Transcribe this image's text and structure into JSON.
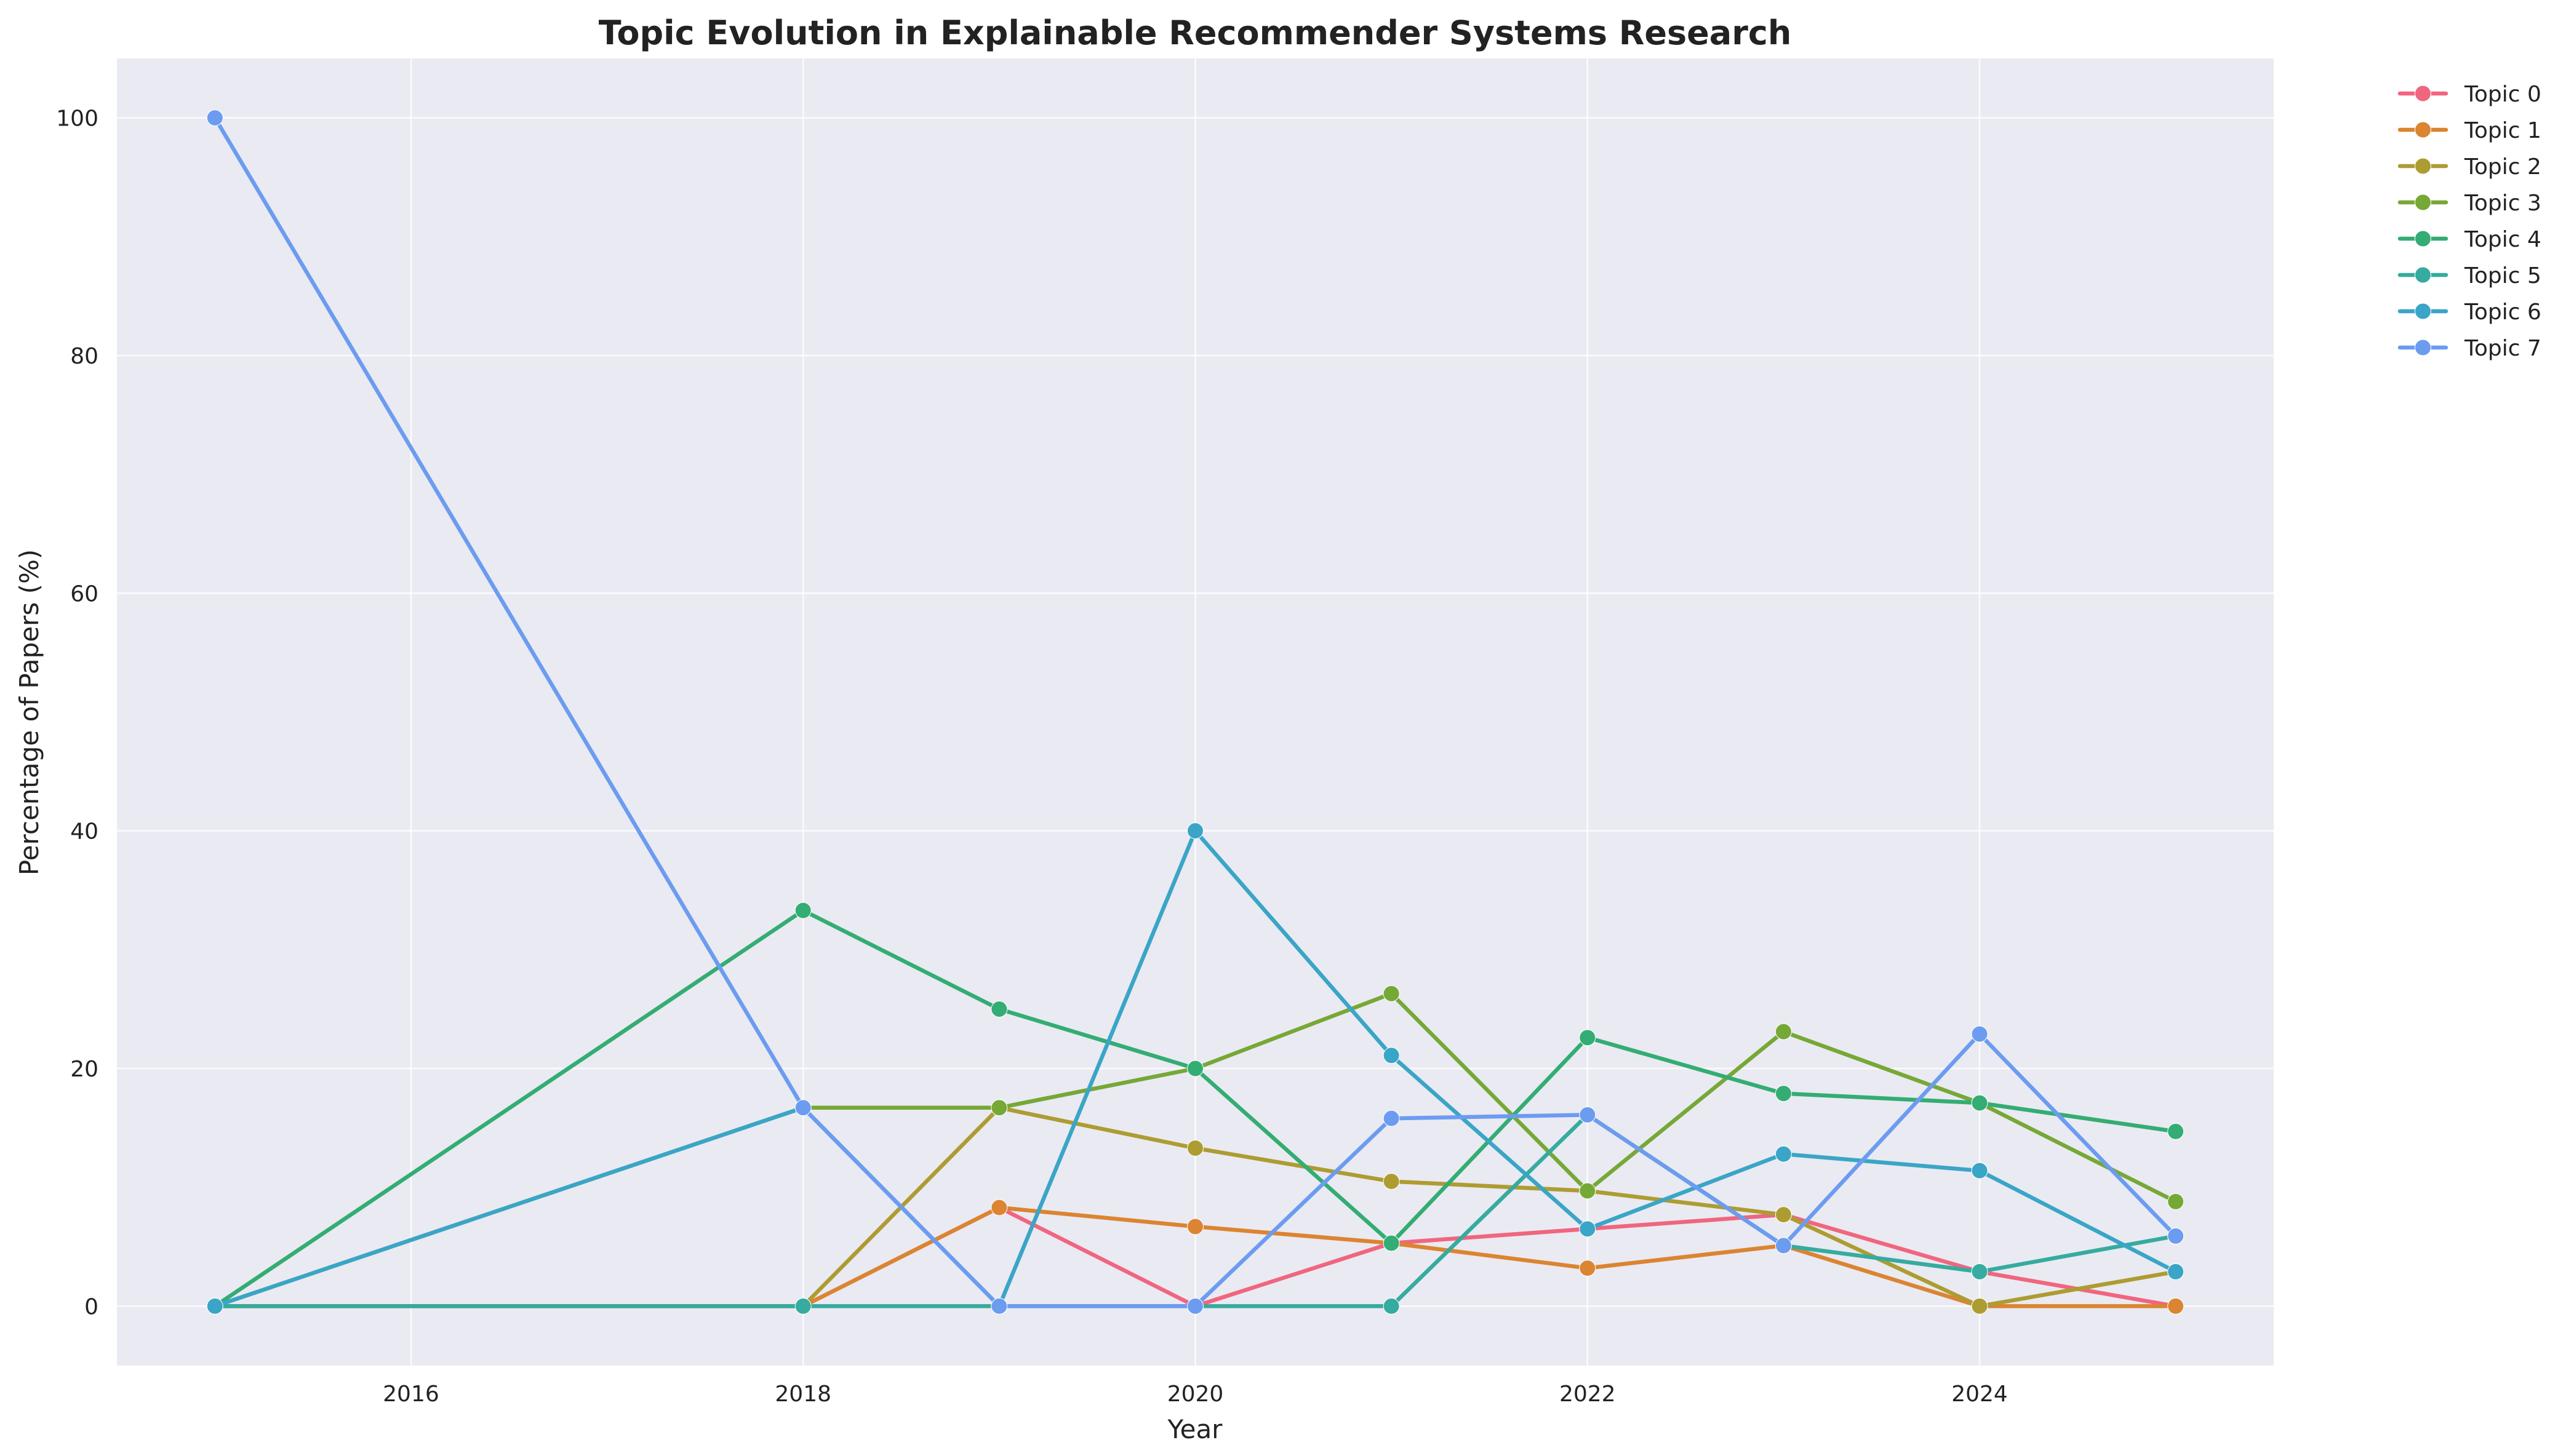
{
  "chart_data": {
    "type": "line",
    "title": "Topic Evolution in Explainable Recommender Systems Research",
    "xlabel": "Year",
    "ylabel": "Percentage of Papers (%)",
    "x": [
      2015,
      2018,
      2019,
      2020,
      2021,
      2022,
      2023,
      2024,
      2025
    ],
    "xlim": [
      2014.5,
      2025.5
    ],
    "ylim": [
      -5,
      105
    ],
    "xticks": [
      2016,
      2018,
      2020,
      2022,
      2024
    ],
    "yticks": [
      0,
      20,
      40,
      60,
      80,
      100
    ],
    "grid": true,
    "legend_position": "outside-top-right",
    "plot_background": "#eaeaf2",
    "series": [
      {
        "name": "Topic 0",
        "color": "#f0667f",
        "values": [
          0,
          0,
          8.3,
          0,
          5.3,
          6.5,
          7.7,
          2.9,
          0
        ]
      },
      {
        "name": "Topic 1",
        "color": "#db8431",
        "values": [
          0,
          0,
          8.3,
          6.7,
          5.3,
          3.2,
          5.1,
          0,
          0
        ]
      },
      {
        "name": "Topic 2",
        "color": "#ad9c32",
        "values": [
          0,
          0,
          16.7,
          13.3,
          10.5,
          9.7,
          7.7,
          0,
          2.9
        ]
      },
      {
        "name": "Topic 3",
        "color": "#76a836",
        "values": [
          0,
          16.7,
          16.7,
          20,
          26.3,
          9.7,
          23.1,
          17.1,
          8.8
        ]
      },
      {
        "name": "Topic 4",
        "color": "#33ad73",
        "values": [
          0,
          33.3,
          25,
          20,
          5.3,
          22.6,
          17.9,
          17.1,
          14.7
        ]
      },
      {
        "name": "Topic 5",
        "color": "#36ab9f",
        "values": [
          0,
          0,
          0,
          0,
          0,
          16.1,
          5.1,
          2.9,
          5.9
        ]
      },
      {
        "name": "Topic 6",
        "color": "#3aa5c7",
        "values": [
          0,
          16.7,
          0,
          40,
          21.1,
          6.5,
          12.8,
          11.4,
          2.9
        ]
      },
      {
        "name": "Topic 7",
        "color": "#6c9cf0",
        "values": [
          100,
          16.7,
          0,
          0,
          15.8,
          16.1,
          5.1,
          22.9,
          5.9
        ]
      }
    ]
  }
}
